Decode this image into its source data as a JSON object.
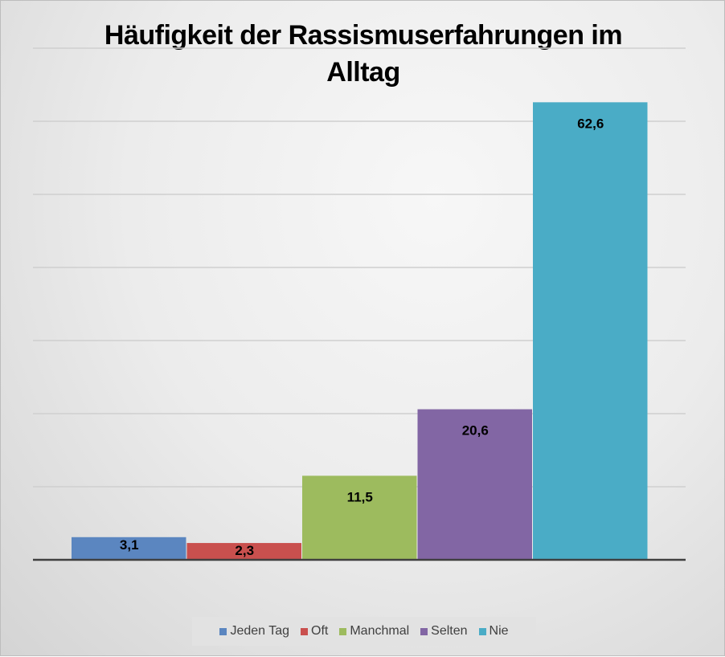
{
  "chart_data": {
    "type": "bar",
    "title": "Häufigkeit der Rassismuserfahrungen im Alltag",
    "title_lines": [
      "Häufigkeit der Rassismuserfahrungen im",
      "Alltag"
    ],
    "categories": [
      "Jeden Tag",
      "Oft",
      "Manchmal",
      "Selten",
      "Nie"
    ],
    "values": [
      3.1,
      2.3,
      11.5,
      20.6,
      62.6
    ],
    "value_labels": [
      "3,1",
      "2,3",
      "11,5",
      "20,6",
      "62,6"
    ],
    "colors": [
      "#5b86c0",
      "#c9504e",
      "#9dbb5e",
      "#8266a4",
      "#4aacc6"
    ],
    "ylim": [
      0,
      70
    ],
    "grid_step": 10,
    "grid": true,
    "xlabel": "",
    "ylabel": "",
    "legend_position": "bottom"
  }
}
